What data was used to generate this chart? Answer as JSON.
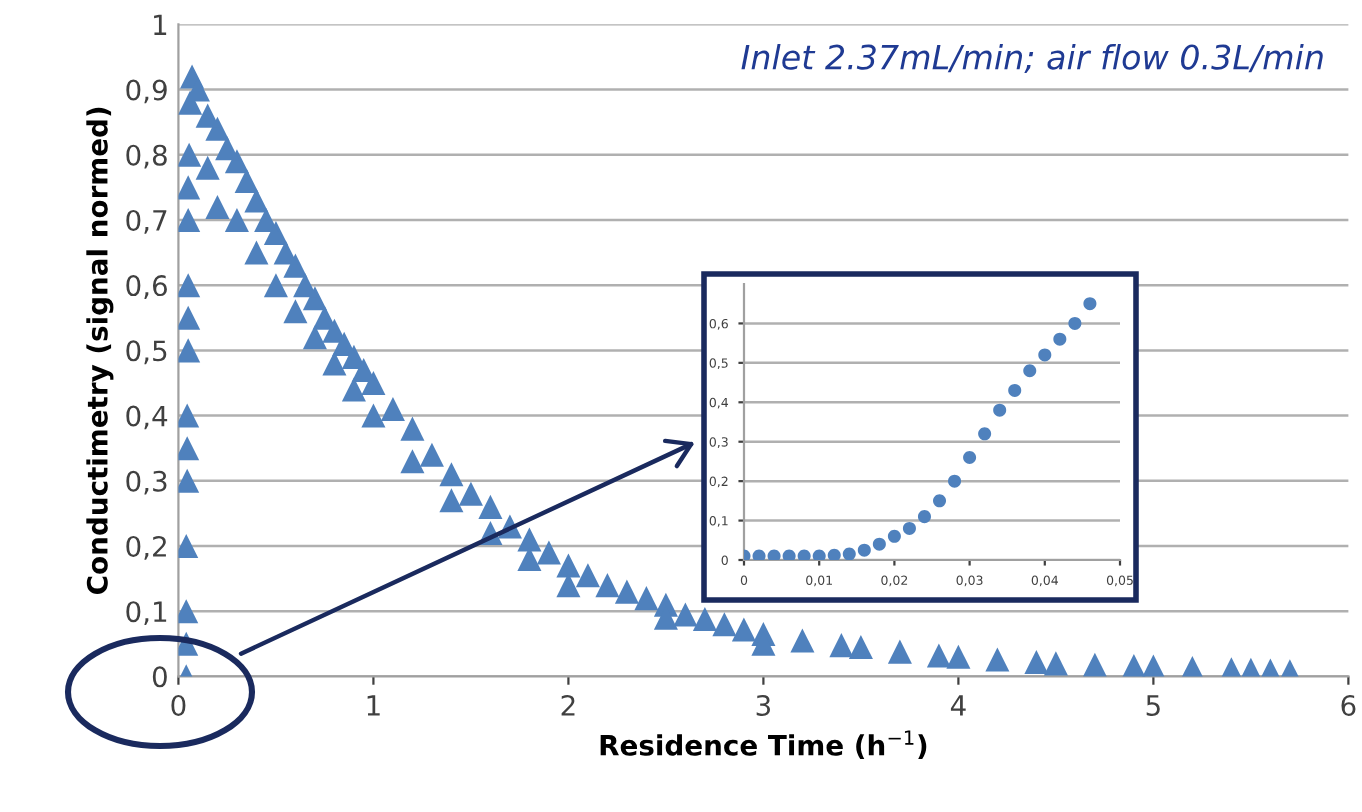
{
  "chart_data": [
    {
      "type": "scatter",
      "xlabel": "Residence Time (h$^{−1}$)",
      "ylabel": "Conductimetry (signal normed)",
      "annotations": [
        "Inlet 2.37mL/min; air flow 0.3L/min"
      ],
      "xlim": [
        0,
        6
      ],
      "ylim": [
        0,
        1
      ],
      "xticks": [
        0,
        1,
        2,
        3,
        4,
        5,
        6
      ],
      "yticks": [
        0,
        {
          "value": 0.1,
          "label": "0,1"
        },
        {
          "value": 0.2,
          "label": "0,2"
        },
        {
          "value": 0.3,
          "label": "0,3"
        },
        {
          "value": 0.4,
          "label": "0,4"
        },
        {
          "value": 0.5,
          "label": "0,5"
        },
        {
          "value": 0.6,
          "label": "0,6"
        },
        {
          "value": 0.7,
          "label": "0,7"
        },
        {
          "value": 0.8,
          "label": "0,8"
        },
        {
          "value": 0.9,
          "label": "0,9"
        },
        1
      ],
      "grid": "y",
      "marker": "triangle",
      "series": [
        {
          "color": "#4f81bd",
          "x": [
            0.04,
            0.04,
            0.04,
            0.045,
            0.045,
            0.05,
            0.05,
            0.05,
            0.055,
            0.06,
            0.07,
            0.1,
            0.2,
            0.3,
            0.4,
            0.5,
            0.6,
            0.7,
            0.8,
            0.9,
            1.0,
            1.2,
            1.4,
            1.6,
            1.8,
            2.0,
            2.2,
            2.5,
            2.8,
            3.0,
            3.5,
            4.0,
            4.5,
            5.0,
            5.5,
            5.7
          ],
          "values": [
            0.0,
            0.1,
            0.2,
            0.3,
            0.4,
            0.5,
            0.6,
            0.7,
            0.8,
            0.88,
            0.92,
            0.9,
            0.84,
            0.79,
            0.73,
            0.68,
            0.63,
            0.58,
            0.53,
            0.49,
            0.45,
            0.38,
            0.31,
            0.26,
            0.21,
            0.17,
            0.14,
            0.11,
            0.08,
            0.065,
            0.045,
            0.03,
            0.02,
            0.015,
            0.01,
            0.008
          ]
        },
        {
          "color": "#4f81bd",
          "x": [
            0.04,
            0.045,
            0.05,
            0.05,
            0.15,
            0.25,
            0.35,
            0.45,
            0.55,
            0.65,
            0.75,
            0.85,
            0.95,
            1.1,
            1.3,
            1.5,
            1.7,
            1.9,
            2.1,
            2.3,
            2.4,
            2.6,
            2.7,
            2.9,
            3.2,
            3.4,
            3.7,
            3.9,
            4.2,
            4.4,
            4.7,
            4.9,
            5.2,
            5.4,
            5.6
          ],
          "values": [
            0.05,
            0.35,
            0.55,
            0.75,
            0.86,
            0.81,
            0.76,
            0.7,
            0.65,
            0.6,
            0.55,
            0.51,
            0.47,
            0.41,
            0.34,
            0.28,
            0.23,
            0.19,
            0.155,
            0.13,
            0.12,
            0.095,
            0.088,
            0.072,
            0.055,
            0.048,
            0.038,
            0.032,
            0.026,
            0.022,
            0.018,
            0.016,
            0.013,
            0.011,
            0.009
          ]
        },
        {
          "color": "#4f81bd",
          "x": [
            0.15,
            0.2,
            0.3,
            0.4,
            0.5,
            0.6,
            0.7,
            0.8,
            0.9,
            1.0,
            1.2,
            1.4,
            1.6,
            1.8,
            2.0,
            2.5,
            3.0
          ],
          "values": [
            0.78,
            0.72,
            0.7,
            0.65,
            0.6,
            0.56,
            0.52,
            0.48,
            0.44,
            0.4,
            0.33,
            0.27,
            0.22,
            0.18,
            0.14,
            0.09,
            0.05
          ]
        }
      ]
    },
    {
      "type": "scatter",
      "xlim": [
        0,
        0.05
      ],
      "ylim": [
        0,
        0.7
      ],
      "xticks": [
        0,
        {
          "value": 0.01,
          "label": "0,01"
        },
        {
          "value": 0.02,
          "label": "0,02"
        },
        {
          "value": 0.03,
          "label": "0,03"
        },
        {
          "value": 0.04,
          "label": "0,04"
        },
        {
          "value": 0.05,
          "label": "0,05"
        }
      ],
      "yticks": [
        0,
        {
          "value": 0.1,
          "label": "0,1"
        },
        {
          "value": 0.2,
          "label": "0,2"
        },
        {
          "value": 0.3,
          "label": "0,3"
        },
        {
          "value": 0.4,
          "label": "0,4"
        },
        {
          "value": 0.5,
          "label": "0,5"
        },
        {
          "value": 0.6,
          "label": "0,6"
        }
      ],
      "grid": "y",
      "marker": "circle",
      "series": [
        {
          "color": "#4f81bd",
          "x": [
            0.0,
            0.002,
            0.004,
            0.006,
            0.008,
            0.01,
            0.012,
            0.014,
            0.016,
            0.018,
            0.02,
            0.022,
            0.024,
            0.026,
            0.028,
            0.03,
            0.032,
            0.034,
            0.036,
            0.038,
            0.04,
            0.042,
            0.044,
            0.046
          ],
          "values": [
            0.01,
            0.01,
            0.01,
            0.01,
            0.01,
            0.01,
            0.012,
            0.015,
            0.025,
            0.04,
            0.06,
            0.08,
            0.11,
            0.15,
            0.2,
            0.26,
            0.32,
            0.38,
            0.43,
            0.48,
            0.52,
            0.56,
            0.6,
            0.65
          ]
        }
      ]
    }
  ]
}
